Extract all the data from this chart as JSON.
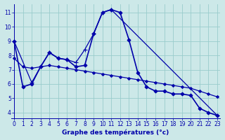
{
  "xlabel": "Graphe des températures (°c)",
  "background_color": "#cce8e8",
  "grid_color": "#99cccc",
  "line_color": "#0000aa",
  "x_ticks": [
    0,
    1,
    2,
    3,
    4,
    5,
    6,
    7,
    8,
    9,
    10,
    11,
    12,
    13,
    14,
    15,
    16,
    17,
    18,
    19,
    20,
    21,
    22,
    23
  ],
  "y_ticks": [
    4,
    5,
    6,
    7,
    8,
    9,
    10,
    11
  ],
  "ylim": [
    3.6,
    11.6
  ],
  "xlim": [
    -0.3,
    23.3
  ],
  "series": [
    {
      "x": [
        0,
        1,
        2,
        3,
        4,
        5,
        6,
        7,
        8,
        9,
        10,
        11,
        12,
        13,
        14,
        15,
        16,
        17,
        18,
        19,
        20,
        21,
        22,
        23
      ],
      "y": [
        9.0,
        5.8,
        6.0,
        7.2,
        8.2,
        7.8,
        7.7,
        7.2,
        7.3,
        9.5,
        11.0,
        11.2,
        11.0,
        9.1,
        6.8,
        5.8,
        5.5,
        5.5,
        5.3,
        5.3,
        5.2,
        4.3,
        4.0,
        3.8
      ],
      "marker": "D",
      "markersize": 2.5,
      "linewidth": 1.2
    },
    {
      "x": [
        0,
        1,
        2,
        3,
        4,
        5,
        6,
        7,
        8,
        9,
        10,
        11,
        12,
        13,
        14,
        15,
        16,
        17,
        18,
        19,
        20,
        21,
        22,
        23
      ],
      "y": [
        7.8,
        7.2,
        7.1,
        7.2,
        7.3,
        7.2,
        7.1,
        7.0,
        6.9,
        6.8,
        6.7,
        6.6,
        6.5,
        6.4,
        6.3,
        6.2,
        6.1,
        6.0,
        5.9,
        5.8,
        5.7,
        5.5,
        5.3,
        5.1
      ],
      "marker": "D",
      "markersize": 2.0,
      "linewidth": 0.9
    },
    {
      "x": [
        0,
        2,
        3,
        4,
        5,
        6,
        7,
        8,
        9,
        10,
        11,
        23
      ],
      "y": [
        9.0,
        6.1,
        7.2,
        8.2,
        7.8,
        7.7,
        7.5,
        8.4,
        9.5,
        11.0,
        11.2,
        3.8
      ],
      "marker": "+",
      "markersize": 4,
      "linewidth": 0.9
    }
  ]
}
